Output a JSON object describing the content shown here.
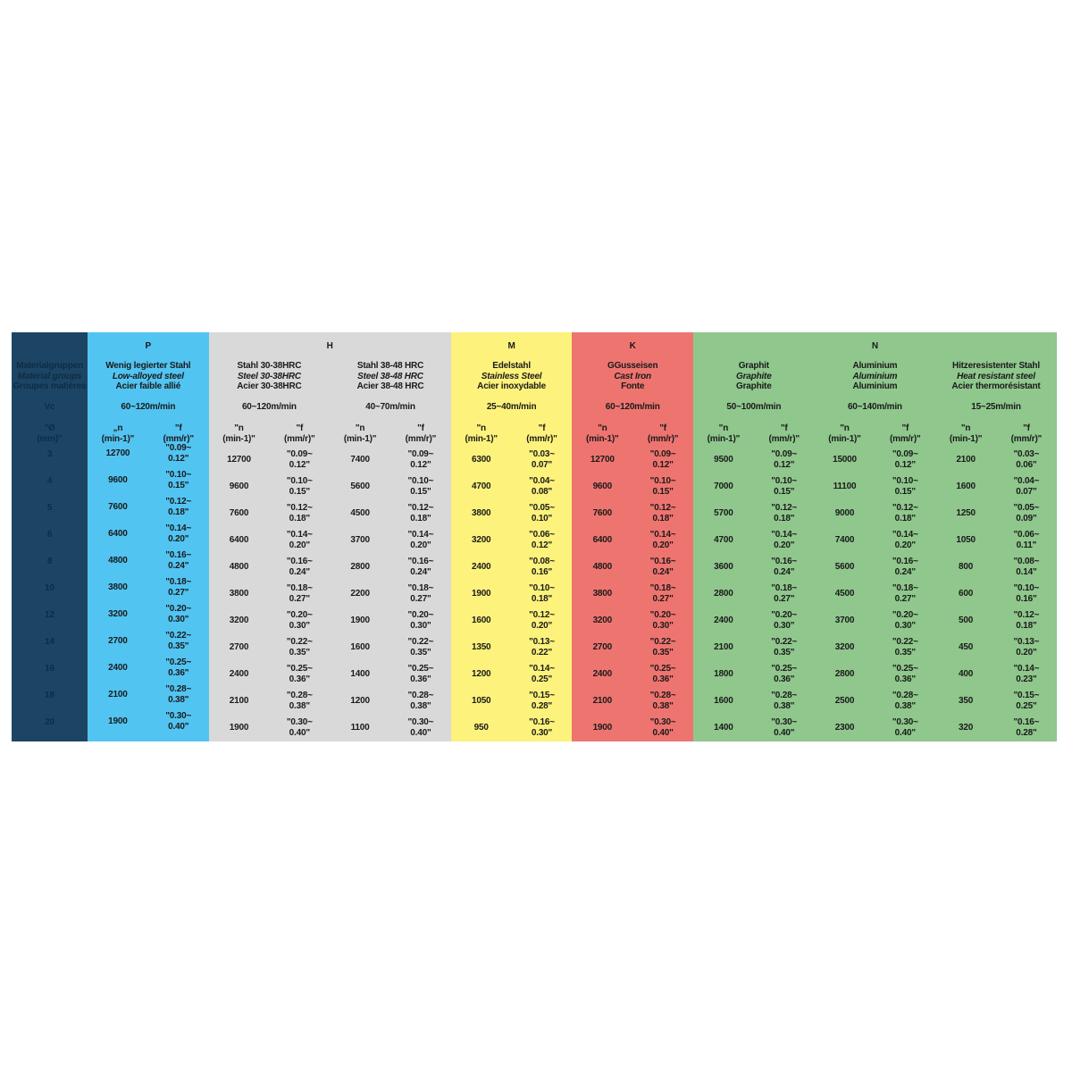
{
  "colors": {
    "left": "#1c4565",
    "P": "#52c4f1",
    "H": "#d9d9d9",
    "M": "#fdf27c",
    "K": "#ee7470",
    "N": "#8fc78d"
  },
  "left": {
    "group_de": "Materialgruppen",
    "group_en": "Material groups",
    "group_fr": "Groupes matières",
    "vc": "Vc",
    "dia_h1": "\"Ø",
    "dia_h2": "(mm)\"",
    "diameters": [
      "3",
      "4",
      "5",
      "6",
      "8",
      "10",
      "12",
      "14",
      "16",
      "18",
      "20"
    ]
  },
  "groups": [
    {
      "letter": "P",
      "color_key": "P"
    },
    {
      "letter": "H",
      "color_key": "H"
    },
    {
      "letter": "M",
      "color_key": "M"
    },
    {
      "letter": "K",
      "color_key": "K"
    },
    {
      "letter": "N",
      "color_key": "N"
    }
  ],
  "materials": [
    {
      "de": "Wenig legierter Stahl",
      "en": "Low-alloyed steel",
      "fr": "Acier faible allié",
      "vc": "60~120m/min",
      "n_h1": "„n",
      "n_h2": "(min-1)\"",
      "f_h1": "\"f",
      "f_h2": "(mm/r)\"",
      "n": [
        "12700",
        "9600",
        "7600",
        "6400",
        "4800",
        "3800",
        "3200",
        "2700",
        "2400",
        "2100",
        "1900"
      ],
      "f": [
        [
          "\"0.09~",
          "0.12\""
        ],
        [
          "\"0.10~",
          "0.15\""
        ],
        [
          "\"0.12~",
          "0.18\""
        ],
        [
          "\"0.14~",
          "0.20\""
        ],
        [
          "\"0.16~",
          "0.24\""
        ],
        [
          "\"0.18~",
          "0.27\""
        ],
        [
          "\"0.20~",
          "0.30\""
        ],
        [
          "\"0.22~",
          "0.35\""
        ],
        [
          "\"0.25~",
          "0.36\""
        ],
        [
          "\"0.28~",
          "0.38\""
        ],
        [
          "\"0.30~",
          "0.40\""
        ]
      ]
    },
    {
      "de": "Stahl 30-38HRC",
      "en": "Steel 30-38HRC",
      "fr": "Acier 30-38HRC",
      "vc": "60~120m/min",
      "n_h1": "\"n",
      "n_h2": "(min-1)\"",
      "f_h1": "\"f",
      "f_h2": "(mm/r)\"",
      "n": [
        "12700",
        "9600",
        "7600",
        "6400",
        "4800",
        "3800",
        "3200",
        "2700",
        "2400",
        "2100",
        "1900"
      ],
      "f": [
        [
          "\"0.09~",
          "0.12\""
        ],
        [
          "\"0.10~",
          "0.15\""
        ],
        [
          "\"0.12~",
          "0.18\""
        ],
        [
          "\"0.14~",
          "0.20\""
        ],
        [
          "\"0.16~",
          "0.24\""
        ],
        [
          "\"0.18~",
          "0.27\""
        ],
        [
          "\"0.20~",
          "0.30\""
        ],
        [
          "\"0.22~",
          "0.35\""
        ],
        [
          "\"0.25~",
          "0.36\""
        ],
        [
          "\"0.28~",
          "0.38\""
        ],
        [
          "\"0.30~",
          "0.40\""
        ]
      ]
    },
    {
      "de": "Stahl 38-48 HRC",
      "en": "Steel 38-48 HRC",
      "fr": "Acier 38-48 HRC",
      "vc": "40~70m/min",
      "n_h1": "\"n",
      "n_h2": "(min-1)\"",
      "f_h1": "\"f",
      "f_h2": "(mm/r)\"",
      "n": [
        "7400",
        "5600",
        "4500",
        "3700",
        "2800",
        "2200",
        "1900",
        "1600",
        "1400",
        "1200",
        "1100"
      ],
      "f": [
        [
          "\"0.09~",
          "0.12\""
        ],
        [
          "\"0.10~",
          "0.15\""
        ],
        [
          "\"0.12~",
          "0.18\""
        ],
        [
          "\"0.14~",
          "0.20\""
        ],
        [
          "\"0.16~",
          "0.24\""
        ],
        [
          "\"0.18~",
          "0.27\""
        ],
        [
          "\"0.20~",
          "0.30\""
        ],
        [
          "\"0.22~",
          "0.35\""
        ],
        [
          "\"0.25~",
          "0.36\""
        ],
        [
          "\"0.28~",
          "0.38\""
        ],
        [
          "\"0.30~",
          "0.40\""
        ]
      ]
    },
    {
      "de": "Edelstahl",
      "en": "Stainless Steel",
      "fr": "Acier inoxydable",
      "vc": "25~40m/min",
      "n_h1": "\"n",
      "n_h2": "(min-1)\"",
      "f_h1": "\"f",
      "f_h2": "(mm/r)\"",
      "n": [
        "6300",
        "4700",
        "3800",
        "3200",
        "2400",
        "1900",
        "1600",
        "1350",
        "1200",
        "1050",
        "950"
      ],
      "f": [
        [
          "\"0.03~",
          "0.07\""
        ],
        [
          "\"0.04~",
          "0.08\""
        ],
        [
          "\"0.05~",
          "0.10\""
        ],
        [
          "\"0.06~",
          "0.12\""
        ],
        [
          "\"0.08~",
          "0.16\""
        ],
        [
          "\"0.10~",
          "0.18\""
        ],
        [
          "\"0.12~",
          "0.20\""
        ],
        [
          "\"0.13~",
          "0.22\""
        ],
        [
          "\"0.14~",
          "0.25\""
        ],
        [
          "\"0.15~",
          "0.28\""
        ],
        [
          "\"0.16~",
          "0.30\""
        ]
      ]
    },
    {
      "de": "GGusseisen",
      "en": "Cast Iron",
      "fr": "Fonte",
      "vc": "60~120m/min",
      "n_h1": "\"n",
      "n_h2": "(min-1)\"",
      "f_h1": "\"f",
      "f_h2": "(mm/r)\"",
      "n": [
        "12700",
        "9600",
        "7600",
        "6400",
        "4800",
        "3800",
        "3200",
        "2700",
        "2400",
        "2100",
        "1900"
      ],
      "f": [
        [
          "\"0.09~",
          "0.12\""
        ],
        [
          "\"0.10~",
          "0.15\""
        ],
        [
          "\"0.12~",
          "0.18\""
        ],
        [
          "\"0.14~",
          "0.20\""
        ],
        [
          "\"0.16~",
          "0.24\""
        ],
        [
          "\"0.18~",
          "0.27\""
        ],
        [
          "\"0.20~",
          "0.30\""
        ],
        [
          "\"0.22~",
          "0.35\""
        ],
        [
          "\"0.25~",
          "0.36\""
        ],
        [
          "\"0.28~",
          "0.38\""
        ],
        [
          "\"0.30~",
          "0.40\""
        ]
      ]
    },
    {
      "de": "Graphit",
      "en": "Graphite",
      "fr": "Graphite",
      "vc": "50~100m/min",
      "n_h1": "\"n",
      "n_h2": "(min-1)\"",
      "f_h1": "\"f",
      "f_h2": "(mm/r)\"",
      "n": [
        "9500",
        "7000",
        "5700",
        "4700",
        "3600",
        "2800",
        "2400",
        "2100",
        "1800",
        "1600",
        "1400"
      ],
      "f": [
        [
          "\"0.09~",
          "0.12\""
        ],
        [
          "\"0.10~",
          "0.15\""
        ],
        [
          "\"0.12~",
          "0.18\""
        ],
        [
          "\"0.14~",
          "0.20\""
        ],
        [
          "\"0.16~",
          "0.24\""
        ],
        [
          "\"0.18~",
          "0.27\""
        ],
        [
          "\"0.20~",
          "0.30\""
        ],
        [
          "\"0.22~",
          "0.35\""
        ],
        [
          "\"0.25~",
          "0.36\""
        ],
        [
          "\"0.28~",
          "0.38\""
        ],
        [
          "\"0.30~",
          "0.40\""
        ]
      ]
    },
    {
      "de": "Aluminium",
      "en": "Aluminium",
      "fr": "Aluminium",
      "vc": "60~140m/min",
      "n_h1": "\"n",
      "n_h2": "(min-1)\"",
      "f_h1": "\"f",
      "f_h2": "(mm/r)\"",
      "n": [
        "15000",
        "11100",
        "9000",
        "7400",
        "5600",
        "4500",
        "3700",
        "3200",
        "2800",
        "2500",
        "2300"
      ],
      "f": [
        [
          "\"0.09~",
          "0.12\""
        ],
        [
          "\"0.10~",
          "0.15\""
        ],
        [
          "\"0.12~",
          "0.18\""
        ],
        [
          "\"0.14~",
          "0.20\""
        ],
        [
          "\"0.16~",
          "0.24\""
        ],
        [
          "\"0.18~",
          "0.27\""
        ],
        [
          "\"0.20~",
          "0.30\""
        ],
        [
          "\"0.22~",
          "0.35\""
        ],
        [
          "\"0.25~",
          "0.36\""
        ],
        [
          "\"0.28~",
          "0.38\""
        ],
        [
          "\"0.30~",
          "0.40\""
        ]
      ]
    },
    {
      "de": "Hitzeresistenter Stahl",
      "en": "Heat resistant steel",
      "fr": "Acier thermorésistant",
      "vc": "15~25m/min",
      "n_h1": "\"n",
      "n_h2": "(min-1)\"",
      "f_h1": "\"f",
      "f_h2": "(mm/r)\"",
      "n": [
        "2100",
        "1600",
        "1250",
        "1050",
        "800",
        "600",
        "500",
        "450",
        "400",
        "350",
        "320"
      ],
      "f": [
        [
          "\"0.03~",
          "0.06\""
        ],
        [
          "\"0.04~",
          "0.07\""
        ],
        [
          "\"0.05~",
          "0.09\""
        ],
        [
          "\"0.06~",
          "0.11\""
        ],
        [
          "\"0.08~",
          "0.14\""
        ],
        [
          "\"0.10~",
          "0.16\""
        ],
        [
          "\"0.12~",
          "0.18\""
        ],
        [
          "\"0.13~",
          "0.20\""
        ],
        [
          "\"0.14~",
          "0.23\""
        ],
        [
          "\"0.15~",
          "0.25\""
        ],
        [
          "\"0.16~",
          "0.28\""
        ]
      ]
    }
  ]
}
